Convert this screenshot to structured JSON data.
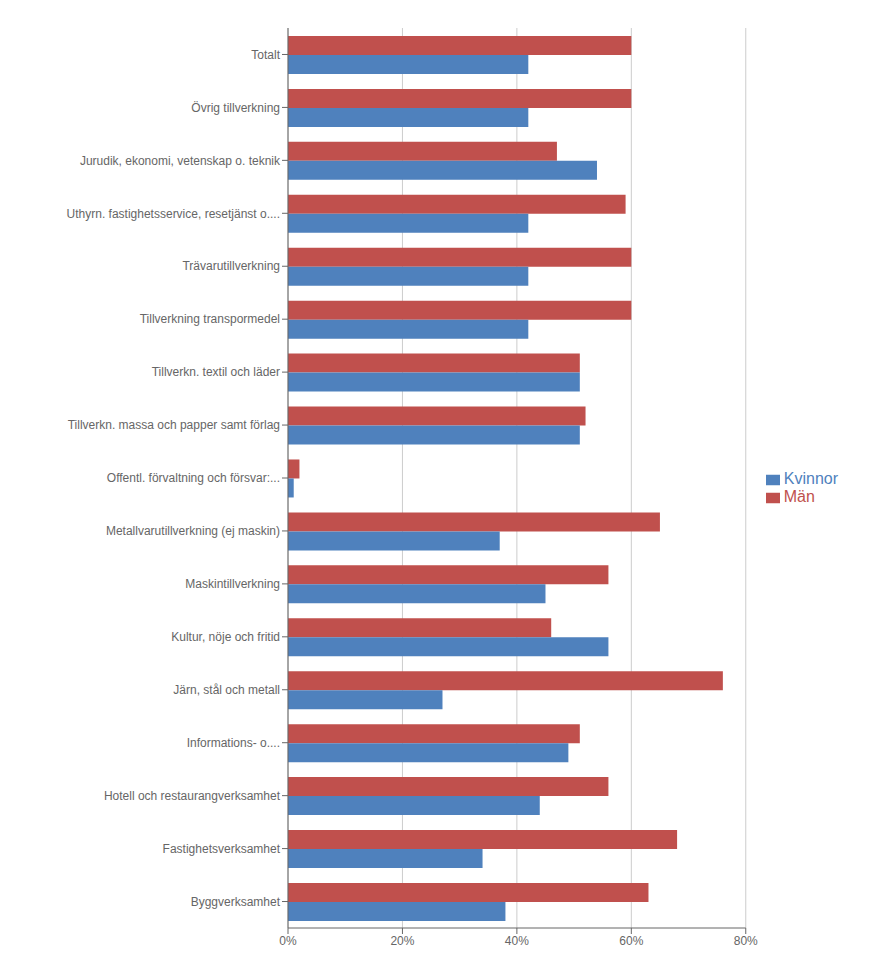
{
  "chart_data": {
    "type": "bar",
    "orientation": "horizontal",
    "categories": [
      "Byggverksamhet",
      "Fastighetsverksamhet",
      "Hotell och restaurangverksamhet",
      "Informations- o....",
      "Järn, stål och metall",
      "Kultur, nöje och fritid",
      "Maskintillverkning",
      "Metallvarutillverkning (ej maskin)",
      "Offentl. förvaltning och försvar:...",
      "Tillverkn. massa och papper samt förlag",
      "Tillverkn. textil och läder",
      "Tillverkning transpormedel",
      "Trävarutillverkning",
      "Uthyrn. fastighetsservice, resetjänst o....",
      "Jurudik, ekonomi, vetenskap o. teknik",
      "Övrig tillverkning",
      "Totalt"
    ],
    "series": [
      {
        "name": "Män",
        "color": "#C0504D",
        "values": [
          0.63,
          0.68,
          0.56,
          0.51,
          0.76,
          0.46,
          0.56,
          0.65,
          0.02,
          0.52,
          0.51,
          0.6,
          0.6,
          0.59,
          0.47,
          0.6,
          0.6
        ]
      },
      {
        "name": "Kvinnor",
        "color": "#4F81BD",
        "values": [
          0.38,
          0.34,
          0.44,
          0.49,
          0.27,
          0.56,
          0.45,
          0.37,
          0.01,
          0.51,
          0.51,
          0.42,
          0.42,
          0.42,
          0.54,
          0.42,
          0.42
        ]
      }
    ],
    "xlim": [
      0.0,
      0.8
    ],
    "xticks": [
      {
        "value": 0.0,
        "label": "0%"
      },
      {
        "value": 0.2,
        "label": "20%"
      },
      {
        "value": 0.4,
        "label": "40%"
      },
      {
        "value": 0.6,
        "label": "60%"
      },
      {
        "value": 0.8,
        "label": "80%"
      }
    ],
    "grid": true,
    "legend": "right"
  }
}
